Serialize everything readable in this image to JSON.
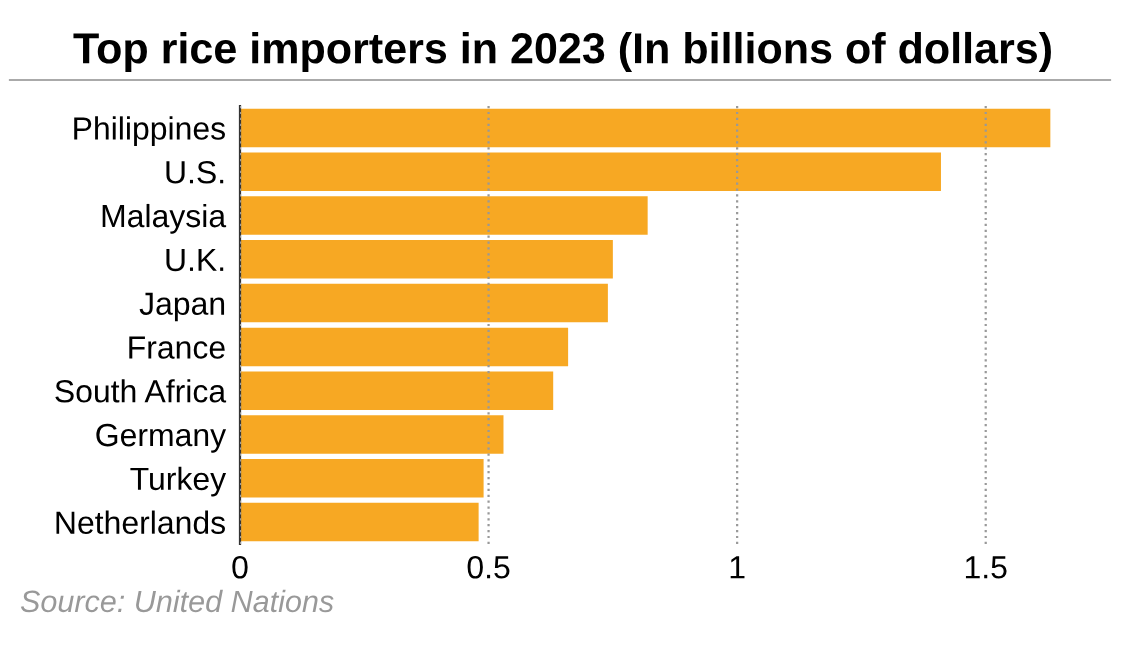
{
  "chart_data": {
    "type": "bar",
    "orientation": "horizontal",
    "title": "Top rice importers in 2023 (In billions of dollars)",
    "categories": [
      "Philippines",
      "U.S.",
      "Malaysia",
      "U.K.",
      "Japan",
      "France",
      "South Africa",
      "Germany",
      "Turkey",
      "Netherlands"
    ],
    "values": [
      1.63,
      1.41,
      0.82,
      0.75,
      0.74,
      0.66,
      0.63,
      0.53,
      0.49,
      0.48
    ],
    "color": "#f7a823",
    "xlim": [
      0,
      1.75
    ],
    "xticks": [
      0,
      0.5,
      1,
      1.5
    ],
    "grid": "x",
    "line_style": "dotted",
    "annotations": [
      "Source: United Nations"
    ]
  }
}
